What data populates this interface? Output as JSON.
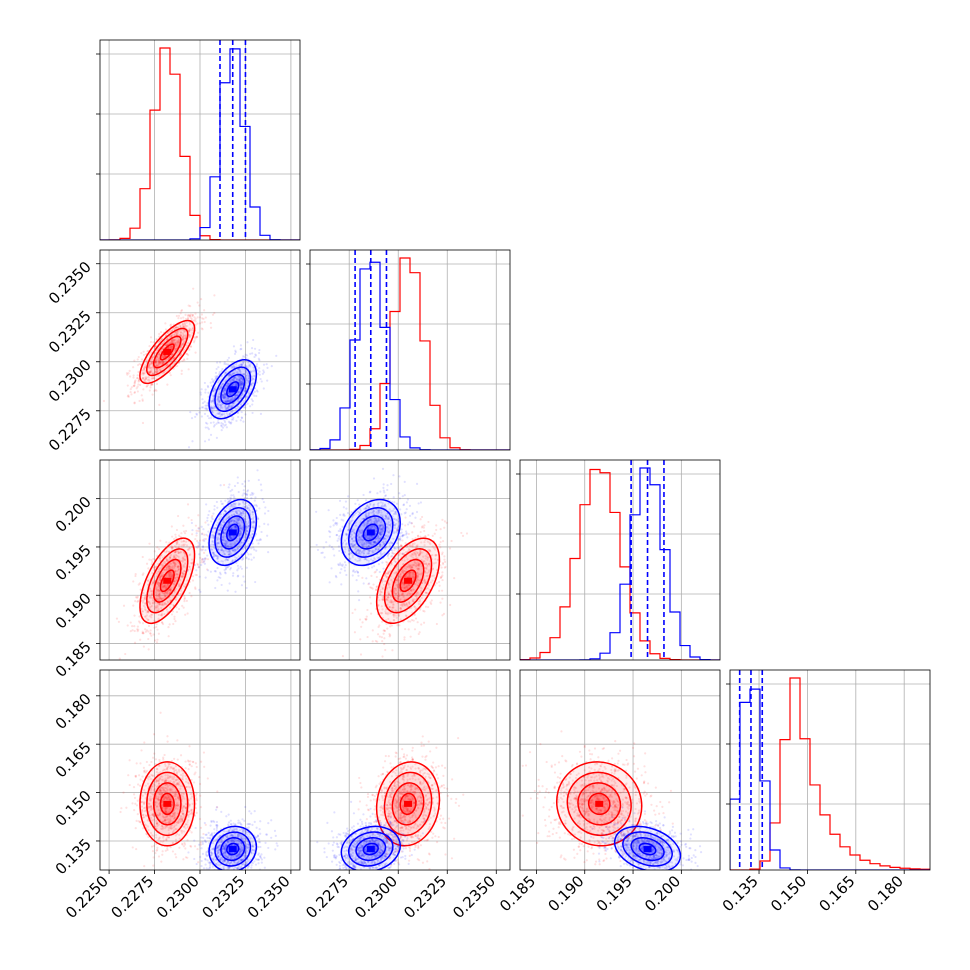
{
  "chart_data": {
    "type": "corner",
    "params": [
      {
        "range": [
          0.2245,
          0.2355
        ],
        "ticks": [
          0.225,
          0.2275,
          0.23,
          0.2325,
          0.235
        ],
        "tick_labels": [
          "0.2250",
          "0.2275",
          "0.2300",
          "0.2325",
          "0.2350"
        ]
      },
      {
        "range": [
          0.2255,
          0.2357
        ],
        "ticks": [
          0.2275,
          0.23,
          0.2325,
          0.235
        ],
        "tick_labels": [
          "0.2275",
          "0.2300",
          "0.2325",
          "0.2350"
        ]
      },
      {
        "range": [
          0.1833,
          0.204
        ],
        "ticks": [
          0.185,
          0.19,
          0.195,
          0.2
        ],
        "tick_labels": [
          "0.185",
          "0.190",
          "0.195",
          "0.200"
        ]
      },
      {
        "range": [
          0.126,
          0.188
        ],
        "ticks": [
          0.135,
          0.15,
          0.165,
          0.18
        ],
        "tick_labels": [
          "0.135",
          "0.150",
          "0.165",
          "0.180"
        ]
      }
    ],
    "grid": true,
    "series": [
      {
        "color": "#ff0000",
        "means": [
          0.2282,
          0.2305,
          0.1915,
          0.1465
        ],
        "sigmas": [
          0.00075,
          0.0008,
          0.0022,
          0.0065
        ],
        "corr": [
          [
            1,
            0.75,
            0.6,
            0.0
          ],
          [
            0.75,
            1,
            0.5,
            0.1
          ],
          [
            0.6,
            0.5,
            1,
            -0.05
          ],
          [
            0.0,
            0.1,
            -0.05,
            1
          ]
        ],
        "quantile_lines": []
      },
      {
        "color": "#0000ff",
        "means": [
          0.2318,
          0.2286,
          0.1965,
          0.1325
        ],
        "sigmas": [
          0.00065,
          0.00075,
          0.0017,
          0.0035
        ],
        "corr": [
          [
            1,
            0.5,
            0.35,
            0.1
          ],
          [
            0.5,
            1,
            0.3,
            0.15
          ],
          [
            0.35,
            0.3,
            1,
            -0.3
          ],
          [
            0.1,
            0.15,
            -0.3,
            1
          ]
        ],
        "quantile_lines": [
          [
            0.2311,
            0.2318,
            0.2325
          ],
          [
            0.2278,
            0.2286,
            0.2294
          ],
          [
            0.1948,
            0.1965,
            0.1982
          ],
          [
            0.129,
            0.1325,
            0.136
          ]
        ]
      }
    ]
  }
}
